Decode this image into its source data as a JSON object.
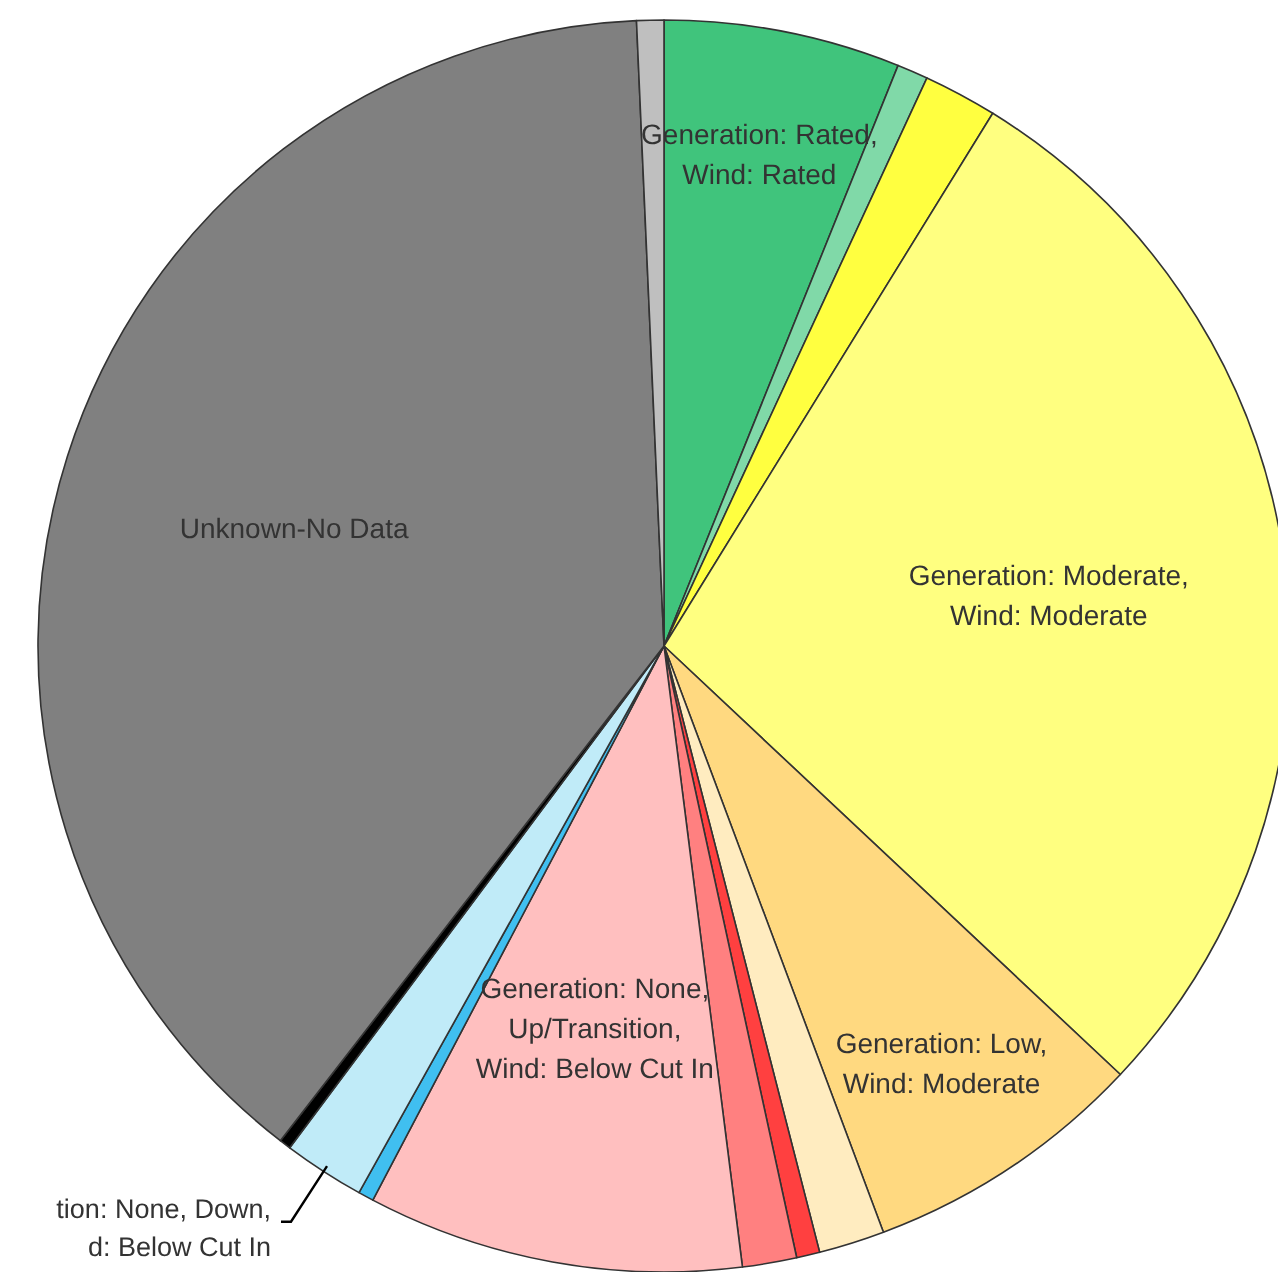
{
  "chart_data": {
    "type": "pie",
    "categories": [
      "Generation: Rated, Wind: Rated",
      null,
      null,
      "Generation: Moderate, Wind: Moderate",
      "Generation: Low, Wind: Moderate",
      null,
      null,
      null,
      "Generation: None, Up/Transition, Wind: Below Cut In",
      null,
      "tion: None, Down, d: Below Cut In",
      null,
      "Unknown-No Data",
      null
    ],
    "values": [
      6.1,
      0.8,
      1.9,
      28.2,
      7.3,
      1.7,
      0.6,
      1.4,
      9.7,
      0.4,
      2.1,
      0.3,
      38.8,
      0.7
    ],
    "colors": [
      "#40c47c",
      "#80d9a8",
      "#ffff40",
      "#ffff80",
      "#ffd980",
      "#ffecc0",
      "#ff4040",
      "#ff8080",
      "#ffbfbf",
      "#40bff0",
      "#c0ebf8",
      "#000000",
      "#808080",
      "#bfbfbf"
    ]
  }
}
